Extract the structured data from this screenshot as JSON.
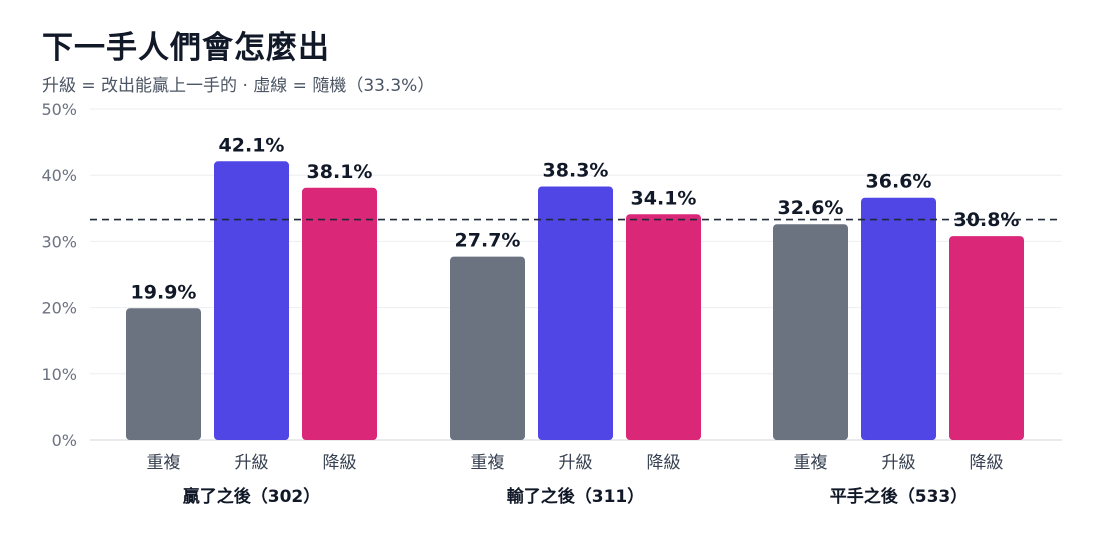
{
  "title": "下一手人們會怎麼出",
  "subtitle": "升級 = 改出能贏上一手的 · 虛線 = 隨機（33.3%）",
  "chart_data": {
    "type": "bar",
    "title": "下一手人們會怎麼出",
    "subtitle": "升級 = 改出能贏上一手的 · 虛線 = 隨機（33.3%）",
    "groups": [
      "贏了之後（302）",
      "輸了之後（311）",
      "平手之後（533）"
    ],
    "categories": [
      "重複",
      "升級",
      "降級"
    ],
    "values": [
      [
        19.9,
        42.1,
        38.1
      ],
      [
        27.7,
        38.3,
        34.1
      ],
      [
        32.6,
        36.6,
        30.8
      ]
    ],
    "value_labels": [
      [
        "19.9%",
        "42.1%",
        "38.1%"
      ],
      [
        "27.7%",
        "38.3%",
        "34.1%"
      ],
      [
        "32.6%",
        "36.6%",
        "30.8%"
      ]
    ],
    "colors": [
      "#6b7280",
      "#4f46e5",
      "#db2777"
    ],
    "ylim": [
      0,
      50
    ],
    "yticks": [
      "0%",
      "10%",
      "20%",
      "30%",
      "40%",
      "50%"
    ],
    "reference_line": {
      "value": 33.3,
      "style": "dashed"
    },
    "grid": true,
    "xlabel": "",
    "ylabel": ""
  }
}
